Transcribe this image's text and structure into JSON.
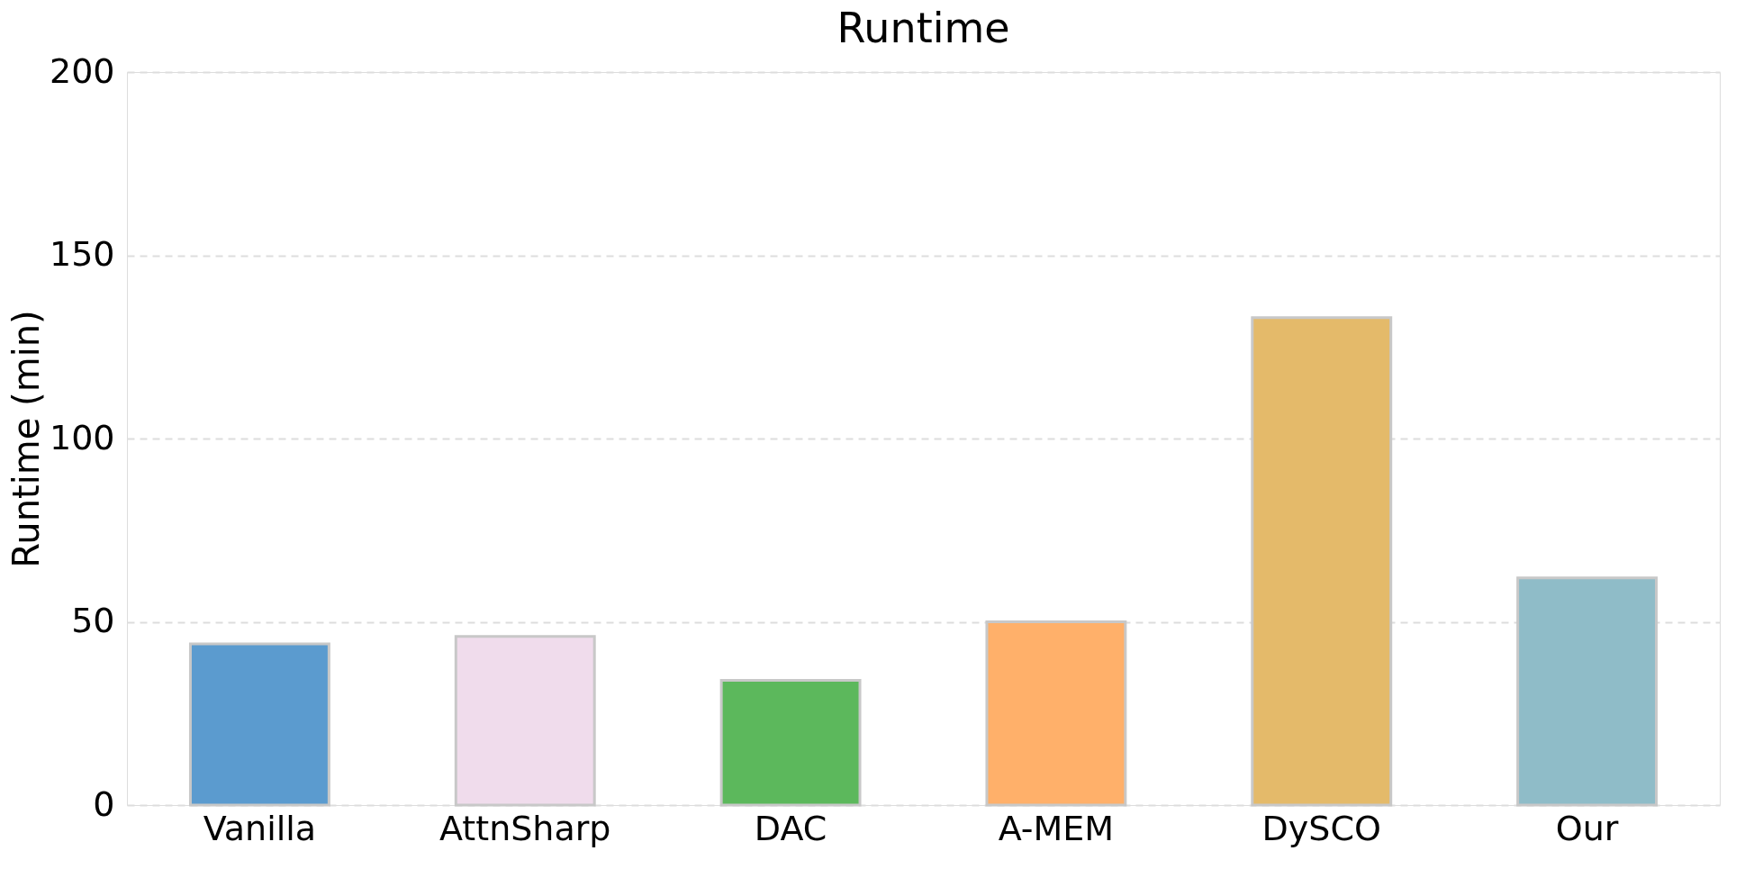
{
  "chart_data": {
    "type": "bar",
    "title": "Runtime",
    "ylabel": "Runtime (min)",
    "categories": [
      "Vanilla",
      "AttnSharp",
      "DAC",
      "A-MEM",
      "DySCO",
      "Our"
    ],
    "values": [
      44,
      46,
      34,
      50,
      133,
      62
    ],
    "colors": [
      "#5b9bcf",
      "#f0dcec",
      "#5cb85c",
      "#ffb06a",
      "#e4ba6a",
      "#8fbcc8"
    ],
    "ylim": [
      0,
      200
    ],
    "yticks": [
      0,
      50,
      100,
      150,
      200
    ],
    "grid": "y"
  }
}
